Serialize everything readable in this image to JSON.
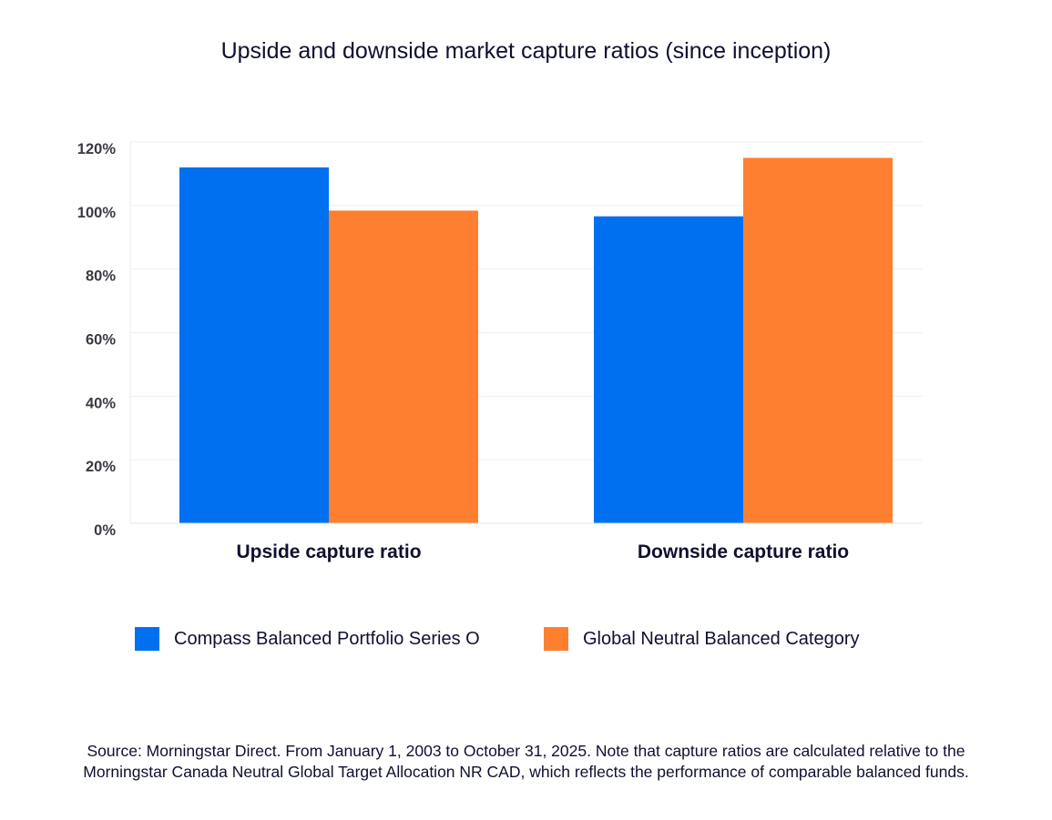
{
  "chart_data": {
    "type": "bar",
    "title": "Upside and downside market capture ratios (since inception)",
    "categories": [
      "Upside capture ratio",
      "Downside capture ratio"
    ],
    "series": [
      {
        "name": "Compass Balanced Portfolio Series O",
        "color": "#0070f0",
        "values": [
          112,
          96.6
        ]
      },
      {
        "name": "Global Neutral Balanced Category",
        "color": "#ff7f30",
        "values": [
          98.4,
          115
        ]
      }
    ],
    "ylim": [
      0,
      120
    ],
    "yticks": [
      0,
      20,
      40,
      60,
      80,
      100,
      120
    ],
    "ytick_labels": [
      "0%",
      "20%",
      "40%",
      "60%",
      "80%",
      "100%",
      "120%"
    ],
    "grid": true,
    "legend_position": "bottom",
    "xlabel": "",
    "ylabel": ""
  },
  "source": {
    "line1": "Source: Morningstar Direct. From January 1, 2003 to October 31, 2025. Note that capture ratios are calculated relative to the",
    "line2": "Morningstar Canada Neutral Global Target Allocation NR CAD, which reflects the performance of comparable balanced funds."
  }
}
